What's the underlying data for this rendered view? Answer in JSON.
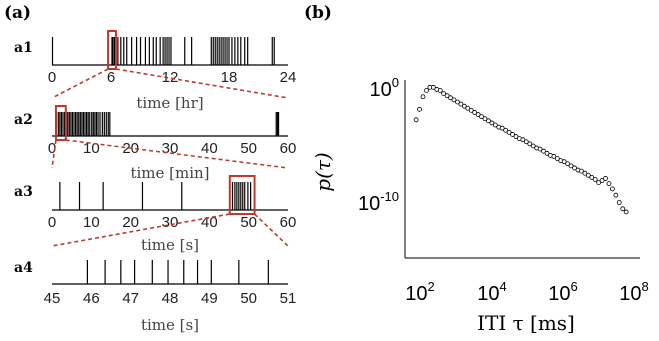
{
  "panel_a": {
    "label": "(a)",
    "rows": [
      {
        "label": "a1",
        "xlabel": "time [hr]",
        "ticks": [
          "0",
          "6",
          "12",
          "18",
          "24"
        ]
      },
      {
        "label": "a2",
        "xlabel": "time [min]",
        "ticks": [
          "0",
          "10",
          "20",
          "30",
          "40",
          "50",
          "60"
        ]
      },
      {
        "label": "a3",
        "xlabel": "time [s]",
        "ticks": [
          "0",
          "10",
          "20",
          "30",
          "40",
          "50",
          "60"
        ]
      },
      {
        "label": "a4",
        "xlabel": "time [s]",
        "ticks": [
          "45",
          "46",
          "47",
          "48",
          "49",
          "50",
          "51"
        ]
      }
    ]
  },
  "panel_b": {
    "label": "(b)",
    "ylabel": "p(τ)",
    "xlabel": "ITI τ [ms]",
    "yticks": [
      {
        "base": "10",
        "exp": "0"
      },
      {
        "base": "10",
        "exp": "-10"
      }
    ],
    "xticks": [
      {
        "base": "10",
        "exp": "2"
      },
      {
        "base": "10",
        "exp": "4"
      },
      {
        "base": "10",
        "exp": "6"
      },
      {
        "base": "10",
        "exp": "8"
      }
    ]
  },
  "colors": {
    "highlight": "#c0392b",
    "ink": "#000000"
  },
  "chart_data": [
    {
      "type": "raster",
      "name": "a1",
      "xlabel": "time [hr]",
      "xlim": [
        0,
        24
      ],
      "events": [
        0.05,
        6.1,
        6.2,
        6.35,
        6.5,
        6.7,
        7.0,
        7.3,
        7.6,
        8.1,
        8.6,
        9.0,
        9.5,
        9.9,
        10.3,
        10.6,
        11.0,
        11.3,
        11.5,
        11.7,
        11.9,
        12.1,
        13.5,
        14.2,
        16.2,
        16.4,
        16.6,
        16.8,
        17.0,
        17.2,
        17.4,
        17.6,
        17.8,
        18.0,
        18.3,
        18.6,
        18.9,
        19.2,
        19.6,
        19.9,
        22.4,
        22.6
      ],
      "highlight": [
        5.7,
        6.5
      ]
    },
    {
      "type": "raster",
      "name": "a2",
      "xlabel": "time [min]",
      "xlim": [
        0,
        60
      ],
      "events": [
        1.1,
        1.6,
        2.0,
        2.4,
        2.8,
        3.2,
        3.6,
        4.0,
        4.4,
        4.8,
        5.2,
        5.6,
        6.0,
        6.4,
        6.8,
        7.2,
        7.6,
        8.0,
        8.4,
        8.8,
        9.2,
        9.6,
        10.1,
        10.5,
        10.9,
        11.3,
        11.7,
        12.2,
        12.8,
        13.3,
        13.8,
        14.3,
        14.7,
        57.0,
        57.3,
        57.6
      ],
      "highlight": [
        1.0,
        3.5
      ]
    },
    {
      "type": "raster",
      "name": "a3",
      "xlabel": "time [s]",
      "xlim": [
        0,
        60
      ],
      "events": [
        2.0,
        7.0,
        13.0,
        23.0,
        33.0,
        45.9,
        46.5,
        47.0,
        47.5,
        48.0,
        48.5,
        49.0,
        49.8,
        50.5
      ],
      "highlight": [
        45.2,
        51.5
      ]
    },
    {
      "type": "raster",
      "name": "a4",
      "xlabel": "time [s]",
      "xlim": [
        45,
        51
      ],
      "events": [
        45.9,
        46.35,
        46.75,
        47.1,
        47.55,
        47.95,
        48.35,
        48.7,
        49.05,
        49.75,
        50.5
      ],
      "highlight": null
    },
    {
      "type": "scatter",
      "name": "ITI distribution",
      "xlabel": "ITI τ [ms]",
      "ylabel": "p(τ)",
      "xscale": "log",
      "yscale": "log",
      "xlim": [
        30,
        200000000
      ],
      "ylim": [
        1e-17,
        1
      ],
      "log10_x": [
        1.8,
        1.9,
        2.0,
        2.1,
        2.2,
        2.3,
        2.4,
        2.5,
        2.6,
        2.7,
        2.8,
        2.9,
        3.0,
        3.1,
        3.2,
        3.3,
        3.4,
        3.5,
        3.6,
        3.7,
        3.8,
        3.9,
        4.0,
        4.1,
        4.2,
        4.3,
        4.4,
        4.5,
        4.6,
        4.7,
        4.8,
        4.9,
        5.0,
        5.1,
        5.2,
        5.3,
        5.4,
        5.5,
        5.6,
        5.7,
        5.8,
        5.9,
        6.0,
        6.1,
        6.2,
        6.3,
        6.4,
        6.5,
        6.6,
        6.7,
        6.8,
        6.9,
        7.0,
        7.1,
        7.2,
        7.3,
        7.4,
        7.5,
        7.6,
        7.7,
        7.8,
        7.9
      ],
      "log10_y": [
        -3.8,
        -2.8,
        -1.6,
        -1.0,
        -0.7,
        -0.7,
        -0.9,
        -1.0,
        -1.3,
        -1.5,
        -1.7,
        -1.9,
        -2.1,
        -2.3,
        -2.5,
        -2.7,
        -2.9,
        -3.1,
        -3.3,
        -3.5,
        -3.7,
        -3.9,
        -4.1,
        -4.3,
        -4.5,
        -4.6,
        -4.8,
        -5.0,
        -5.2,
        -5.4,
        -5.6,
        -5.7,
        -5.9,
        -6.1,
        -6.3,
        -6.5,
        -6.6,
        -6.8,
        -7.0,
        -7.2,
        -7.3,
        -7.5,
        -7.7,
        -7.8,
        -8.0,
        -8.2,
        -8.4,
        -8.6,
        -8.7,
        -8.9,
        -9.1,
        -9.3,
        -9.5,
        -9.8,
        -9.6,
        -9.4,
        -9.9,
        -10.4,
        -11.0,
        -11.7,
        -12.3,
        -12.6
      ]
    }
  ]
}
